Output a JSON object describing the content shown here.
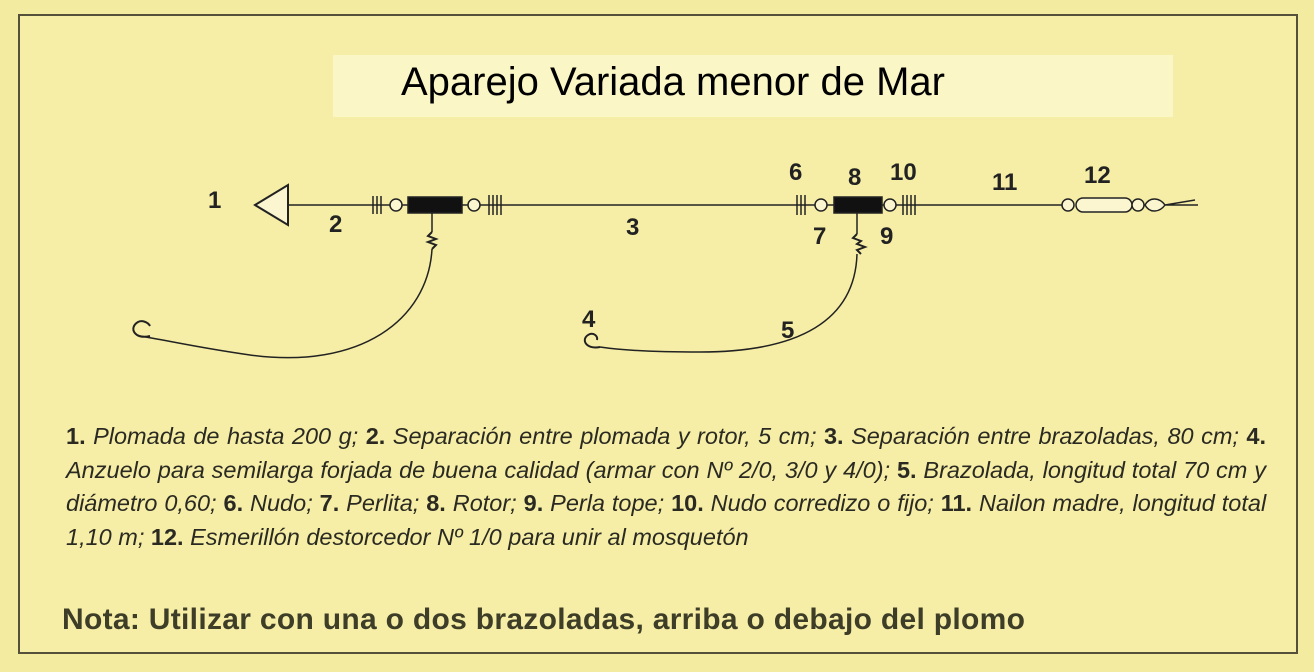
{
  "title": "Aparejo Variada menor de Mar",
  "labels": [
    "1",
    "2",
    "3",
    "4",
    "5",
    "6",
    "7",
    "8",
    "9",
    "10",
    "11",
    "12"
  ],
  "legend": [
    {
      "num": "1.",
      "text": "Plomada de hasta 200 g;"
    },
    {
      "num": "2.",
      "text": "Separación entre plomada y rotor, 5 cm;"
    },
    {
      "num": "3.",
      "text": "Separación entre brazoladas, 80 cm;"
    },
    {
      "num": "4.",
      "text": "Anzuelo para semilarga forjada de buena calidad (armar con Nº 2/0, 3/0 y 4/0);"
    },
    {
      "num": "5.",
      "text": "Brazolada, longitud total 70 cm y diámetro 0,60;"
    },
    {
      "num": "6.",
      "text": "Nudo;"
    },
    {
      "num": "7.",
      "text": "Perlita;"
    },
    {
      "num": "8.",
      "text": "Rotor;"
    },
    {
      "num": "9.",
      "text": "Perla tope;"
    },
    {
      "num": "10.",
      "text": "Nudo corredizo o fijo;"
    },
    {
      "num": "11.",
      "text": "Nailon madre, longitud total 1,10 m;"
    },
    {
      "num": "12.",
      "text": "Esmerillón destorcedor Nº 1/0 para unir al mosquetón"
    }
  ],
  "note": "Nota: Utilizar con una o dos brazoladas, arriba o debajo del plomo",
  "colors": {
    "background": "#f6eea6",
    "title_box": "#fbf6c6",
    "note_text": "#3d3d28"
  }
}
